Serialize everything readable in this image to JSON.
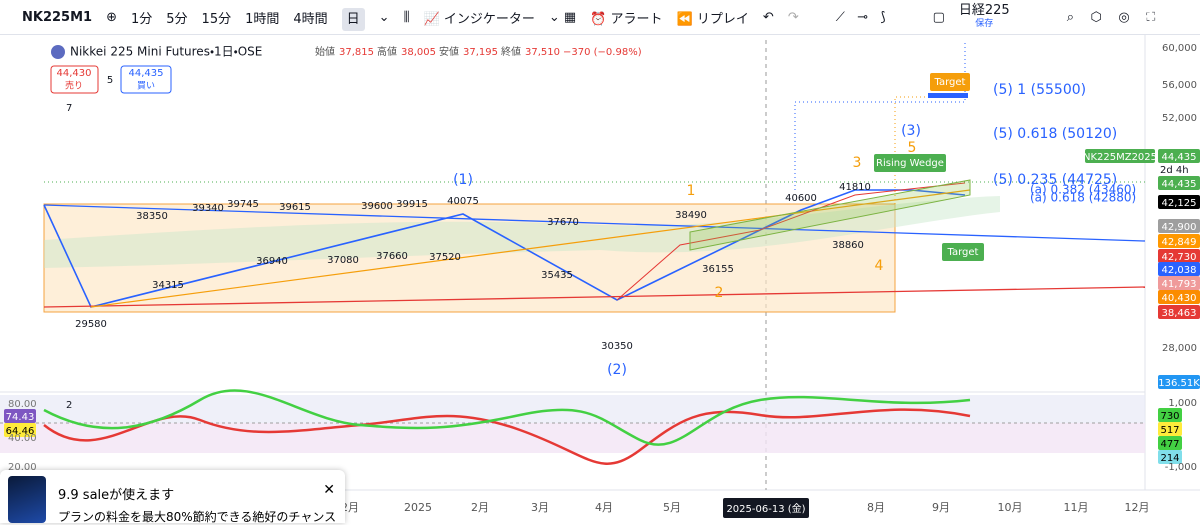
{
  "toolbar": {
    "symbol": "NK225M1",
    "intervals": [
      "1分",
      "5分",
      "15分",
      "1時間",
      "4時間",
      "日"
    ],
    "indicators": "インジケーター",
    "alert": "アラート",
    "replay": "リプレイ",
    "layout_name": "日経225",
    "save": "保存"
  },
  "legend": {
    "title": "Nikkei 225 Mini Futures・1日・OSE",
    "open_label": "始値",
    "open": "37,815",
    "high_label": "高値",
    "high": "38,005",
    "low_label": "安値",
    "low": "37,195",
    "close_label": "終値",
    "close": "37,510",
    "change": "−370 (−0.98%)",
    "sell_price": "44,430",
    "sell": "売り",
    "spread": "5",
    "buy_price": "44,435",
    "buy": "買い",
    "hidden_count": "7"
  },
  "price_axis": {
    "ticks": [
      "60,000",
      "56,000",
      "52,000",
      "28,000"
    ],
    "labels": [
      {
        "text": "44,435",
        "color": "#4caf50"
      },
      {
        "text": "2d 4h",
        "color": "#4caf50"
      },
      {
        "text": "44,435",
        "color": "#4caf50"
      },
      {
        "text": "42,125",
        "color": "#000000"
      },
      {
        "text": "42,900",
        "color": "#9e9e9e"
      },
      {
        "text": "42,849",
        "color": "#ff9800"
      },
      {
        "text": "42,730",
        "color": "#e53935"
      },
      {
        "text": "42,038",
        "color": "#2962ff"
      },
      {
        "text": "41,793",
        "color": "#ef9a9a"
      },
      {
        "text": "40,430",
        "color": "#fb8c00"
      },
      {
        "text": "38,463",
        "color": "#e53935"
      },
      {
        "text": "136.51K",
        "color": "#2196f3"
      }
    ],
    "symbol_tag": "NK225MZ2025"
  },
  "indicator_pane": {
    "count": "2",
    "left_ticks": [
      "80.00",
      "74.43",
      "64.46",
      "40.00",
      "20.00"
    ],
    "right_ticks": [
      "1,000",
      "730",
      "517",
      "477",
      "214",
      "-1,000"
    ]
  },
  "time_axis": {
    "labels": [
      "2月",
      "2025",
      "2月",
      "3月",
      "4月",
      "5月",
      "8月",
      "9月",
      "10月",
      "11月",
      "12月"
    ],
    "cursor_date": "2025-06-13 (金)"
  },
  "annotations": {
    "pivots": [
      "38350",
      "39340",
      "39745",
      "39615",
      "39600",
      "39915",
      "40075",
      "37670",
      "38490",
      "40600",
      "41810",
      "38860",
      "36155",
      "35435",
      "37520",
      "37660",
      "37080",
      "36940",
      "34315",
      "29580",
      "30350"
    ],
    "waves": [
      "(1)",
      "(2)",
      "(3)",
      "1",
      "2",
      "3",
      "4",
      "5"
    ],
    "fib": [
      "(5) 1 (55500)",
      "(5) 0.618 (50120)",
      "(5) 0.235 (44725)",
      "(a) 0.382 (43460)",
      "(a) 0.618 (42880)"
    ],
    "boxes": [
      "Rising Wedge",
      "Target",
      "Target"
    ]
  },
  "popup": {
    "title": "9.9 saleが使えます",
    "body": "プランの料金を最大80%節約できる絶好のチャンス"
  }
}
